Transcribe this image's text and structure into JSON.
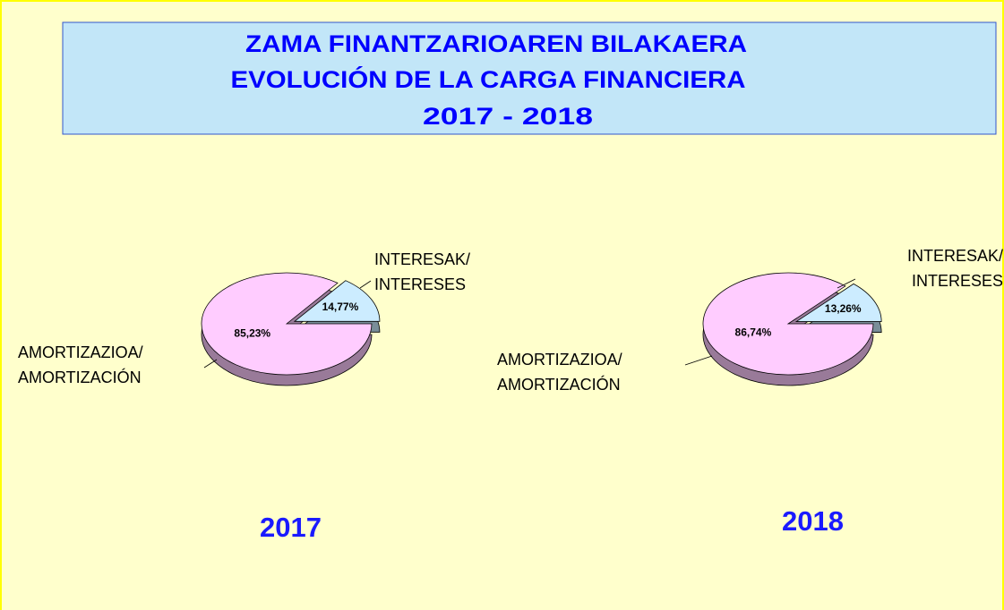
{
  "header": {
    "lines": [
      "ZAMA FINANTZARIOAREN BILAKAERA",
      "EVOLUCIÓN DE LA CARGA FINANCIERA",
      "2017 - 2018"
    ]
  },
  "chart_data": [
    {
      "type": "pie",
      "title": "2017",
      "categories": [
        "AMORTIZAZIOA/\nAMORTIZACIÓN",
        "INTERESAK/\nINTERESES"
      ],
      "values": [
        85.23,
        14.77
      ],
      "value_labels": [
        "85,23%",
        "14,77%"
      ],
      "colors": [
        "#ffccff",
        "#ccecff"
      ]
    },
    {
      "type": "pie",
      "title": "2018",
      "categories": [
        "AMORTIZAZIOA/\nAMORTIZACIÓN",
        "INTERESAK/\nINTERESES"
      ],
      "values": [
        86.74,
        13.26
      ],
      "value_labels": [
        "86,74%",
        "13,26%"
      ],
      "colors": [
        "#ffccff",
        "#ccecff"
      ]
    }
  ]
}
